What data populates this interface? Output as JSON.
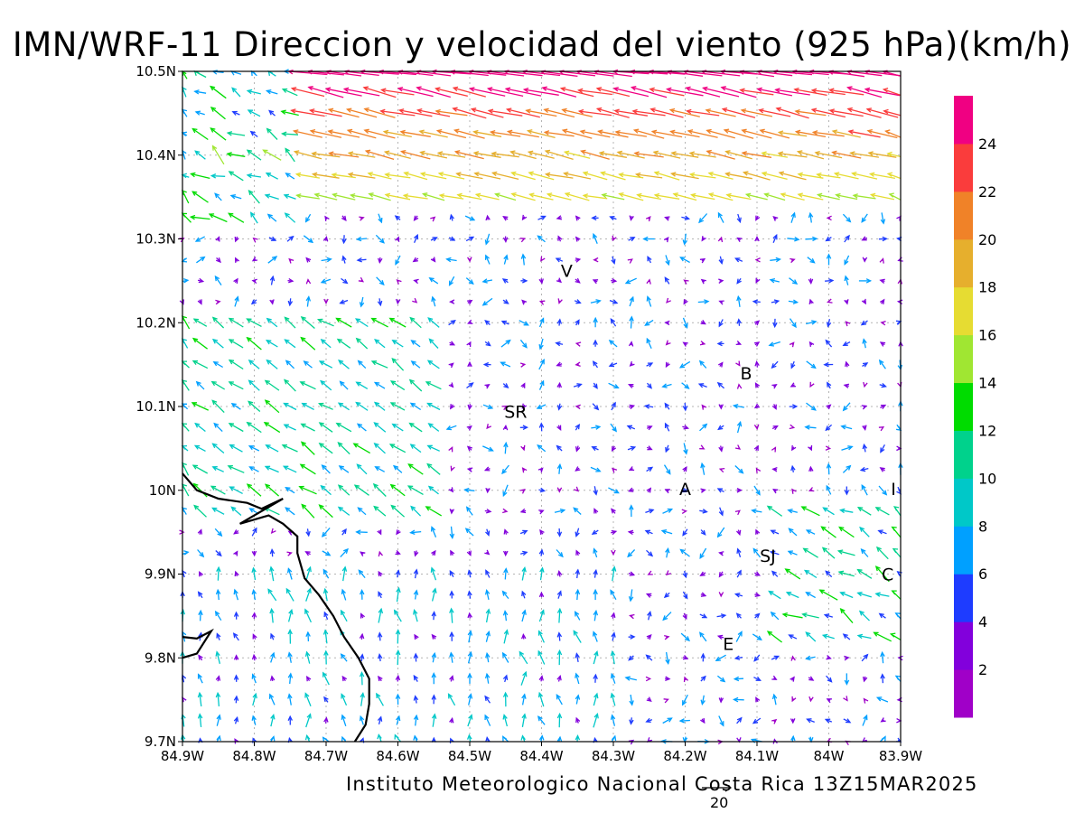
{
  "title": "IMN/WRF-11 Direccion y velocidad del viento (925 hPa)(km/h)",
  "credit": "Instituto Meteorologico Nacional Costa Rica 13Z15MAR2025",
  "reference_vector": {
    "label": "20",
    "speed": 20
  },
  "map": {
    "lon_range": [
      -84.9,
      -83.9
    ],
    "lat_range": [
      9.7,
      10.5
    ],
    "x_ticks": [
      {
        "lon": -84.9,
        "label": "84.9W"
      },
      {
        "lon": -84.8,
        "label": "84.8W"
      },
      {
        "lon": -84.7,
        "label": "84.7W"
      },
      {
        "lon": -84.6,
        "label": "84.6W"
      },
      {
        "lon": -84.5,
        "label": "84.5W"
      },
      {
        "lon": -84.4,
        "label": "84.4W"
      },
      {
        "lon": -84.3,
        "label": "84.3W"
      },
      {
        "lon": -84.2,
        "label": "84.2W"
      },
      {
        "lon": -84.1,
        "label": "84.1W"
      },
      {
        "lon": -84.0,
        "label": "84W"
      },
      {
        "lon": -83.9,
        "label": "83.9W"
      }
    ],
    "y_ticks": [
      {
        "lat": 9.7,
        "label": "9.7N"
      },
      {
        "lat": 9.8,
        "label": "9.8N"
      },
      {
        "lat": 9.9,
        "label": "9.9N"
      },
      {
        "lat": 10.0,
        "label": "10N"
      },
      {
        "lat": 10.1,
        "label": "10.1N"
      },
      {
        "lat": 10.2,
        "label": "10.2N"
      },
      {
        "lat": 10.3,
        "label": "10.3N"
      },
      {
        "lat": 10.4,
        "label": "10.4N"
      },
      {
        "lat": 10.5,
        "label": "10.5N"
      }
    ],
    "places": [
      {
        "label": "V",
        "lon": -84.365,
        "lat": 10.262
      },
      {
        "label": "B",
        "lon": -84.115,
        "lat": 10.14
      },
      {
        "label": "SR",
        "lon": -84.436,
        "lat": 10.094
      },
      {
        "label": "A",
        "lon": -84.2,
        "lat": 10.002
      },
      {
        "label": "I",
        "lon": -83.91,
        "lat": 10.002
      },
      {
        "label": "SJ",
        "lon": -84.085,
        "lat": 9.922
      },
      {
        "label": "C",
        "lon": -83.918,
        "lat": 9.9
      },
      {
        "label": "E",
        "lon": -84.14,
        "lat": 9.817
      }
    ],
    "coastline": [
      [
        [
          -84.9,
          10.02
        ],
        [
          -84.88,
          10.0
        ],
        [
          -84.85,
          9.99
        ],
        [
          -84.81,
          9.985
        ],
        [
          -84.79,
          9.978
        ],
        [
          -84.76,
          9.99
        ],
        [
          -84.82,
          9.96
        ],
        [
          -84.78,
          9.97
        ],
        [
          -84.76,
          9.96
        ],
        [
          -84.74,
          9.945
        ],
        [
          -84.74,
          9.925
        ],
        [
          -84.73,
          9.895
        ],
        [
          -84.71,
          9.875
        ],
        [
          -84.69,
          9.85
        ],
        [
          -84.675,
          9.825
        ],
        [
          -84.655,
          9.8
        ],
        [
          -84.64,
          9.775
        ],
        [
          -84.64,
          9.745
        ],
        [
          -84.645,
          9.72
        ],
        [
          -84.66,
          9.7
        ]
      ],
      [
        [
          -84.9,
          9.825
        ],
        [
          -84.88,
          9.823
        ],
        [
          -84.86,
          9.832
        ],
        [
          -84.88,
          9.805
        ],
        [
          -84.9,
          9.8
        ]
      ]
    ]
  },
  "colorbar": {
    "levels": [
      2,
      4,
      6,
      8,
      10,
      12,
      14,
      16,
      18,
      20,
      22,
      24
    ],
    "colors": [
      "#a000c8",
      "#8200dc",
      "#1e3cff",
      "#00a0ff",
      "#00c8c8",
      "#00d28c",
      "#00dc00",
      "#a0e632",
      "#e6dc32",
      "#e6af2d",
      "#f08228",
      "#fa3c3c",
      "#f00082"
    ]
  },
  "wind_field": {
    "grid_lon": [
      -84.9,
      -83.9,
      41
    ],
    "grid_lat": [
      9.7,
      10.5,
      33
    ],
    "zones": [
      {
        "region": "northern strip",
        "lat": [
          10.34,
          10.5
        ],
        "lon": [
          -84.75,
          -83.9
        ],
        "direction": "from ESE",
        "speed_kmh": [
          16,
          26
        ]
      },
      {
        "region": "northwest",
        "lat": [
          10.3,
          10.5
        ],
        "lon": [
          -84.9,
          -84.75
        ],
        "direction": "from E to SE",
        "speed_kmh": [
          6,
          16
        ]
      },
      {
        "region": "western lowlands",
        "lat": [
          9.95,
          10.22
        ],
        "lon": [
          -84.9,
          -84.55
        ],
        "direction": "from SE",
        "speed_kmh": [
          8,
          14
        ]
      },
      {
        "region": "central",
        "lat": [
          9.95,
          10.3
        ],
        "lon": [
          -84.55,
          -84.0
        ],
        "direction": "variable, weak",
        "speed_kmh": [
          1,
          8
        ]
      },
      {
        "region": "valley southeast",
        "lat": [
          9.82,
          9.98
        ],
        "lon": [
          -84.1,
          -83.9
        ],
        "direction": "from SE",
        "speed_kmh": [
          6,
          14
        ]
      },
      {
        "region": "south",
        "lat": [
          9.7,
          9.9
        ],
        "lon": [
          -84.7,
          -84.3
        ],
        "direction": "from S",
        "speed_kmh": [
          4,
          10
        ]
      }
    ]
  }
}
